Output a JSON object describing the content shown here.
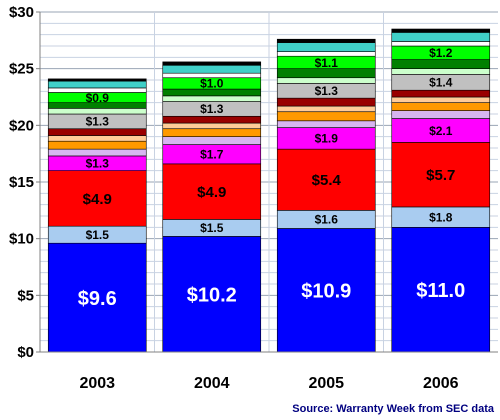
{
  "chart_data": {
    "type": "bar",
    "stacked": true,
    "categories": [
      "2003",
      "2004",
      "2005",
      "2006"
    ],
    "ylim": [
      0,
      30
    ],
    "y_ticks": [
      "$0",
      "$5",
      "$10",
      "$15",
      "$20",
      "$25",
      "$30"
    ],
    "y_tick_values": [
      0,
      5,
      10,
      15,
      20,
      25,
      30
    ],
    "grid": true,
    "title": "",
    "xlabel": "",
    "ylabel": "",
    "source": "Source: Warranty Week from SEC data",
    "series": [
      {
        "color": "#0000ff",
        "values": [
          9.6,
          10.2,
          10.9,
          11.0
        ],
        "labels": [
          "$9.6",
          "$10.2",
          "$10.9",
          "$11.0"
        ],
        "label_color": "#ffffff"
      },
      {
        "color": "#a9ccf0",
        "values": [
          1.5,
          1.5,
          1.6,
          1.8
        ],
        "labels": [
          "$1.5",
          "$1.5",
          "$1.6",
          "$1.8"
        ],
        "label_color": "#000000"
      },
      {
        "color": "#ff0000",
        "values": [
          4.9,
          4.9,
          5.4,
          5.7
        ],
        "labels": [
          "$4.9",
          "$4.9",
          "$5.4",
          "$5.7"
        ],
        "label_color": "#000000"
      },
      {
        "color": "#ff00ff",
        "values": [
          1.3,
          1.7,
          1.9,
          2.1
        ],
        "labels": [
          "$1.3",
          "$1.7",
          "$1.9",
          "$2.1"
        ],
        "label_color": "#000000"
      },
      {
        "color": "#d7b5f0",
        "values": [
          0.6,
          0.7,
          0.6,
          0.7
        ],
        "labels": [
          "",
          "",
          "",
          ""
        ],
        "label_color": "#000000"
      },
      {
        "color": "#ff9900",
        "values": [
          0.7,
          0.7,
          0.8,
          0.7
        ],
        "labels": [
          "",
          "",
          "",
          ""
        ],
        "label_color": "#000000"
      },
      {
        "color": "#ffcc99",
        "values": [
          0.5,
          0.5,
          0.5,
          0.5
        ],
        "labels": [
          "",
          "",
          "",
          ""
        ],
        "label_color": "#000000"
      },
      {
        "color": "#990000",
        "values": [
          0.6,
          0.6,
          0.7,
          0.6
        ],
        "labels": [
          "",
          "",
          "",
          ""
        ],
        "label_color": "#000000"
      },
      {
        "color": "#c0c0c0",
        "values": [
          1.3,
          1.3,
          1.3,
          1.4
        ],
        "labels": [
          "$1.3",
          "$1.3",
          "$1.3",
          "$1.4"
        ],
        "label_color": "#000000"
      },
      {
        "color": "#ccffcc",
        "values": [
          0.5,
          0.5,
          0.5,
          0.5
        ],
        "labels": [
          "",
          "",
          "",
          ""
        ],
        "label_color": "#000000"
      },
      {
        "color": "#008000",
        "values": [
          0.5,
          0.6,
          0.8,
          0.8
        ],
        "labels": [
          "",
          "",
          "",
          ""
        ],
        "label_color": "#000000"
      },
      {
        "color": "#00ff00",
        "values": [
          0.9,
          1.0,
          1.1,
          1.2
        ],
        "labels": [
          "$0.9",
          "$1.0",
          "$1.1",
          "$1.2"
        ],
        "label_color": "#000000"
      },
      {
        "color": "#ffffff",
        "values": [
          0.4,
          0.4,
          0.4,
          0.4
        ],
        "labels": [
          "",
          "",
          "",
          ""
        ],
        "label_color": "#000000"
      },
      {
        "color": "#40d0c8",
        "values": [
          0.6,
          0.7,
          0.8,
          0.8
        ],
        "labels": [
          "",
          "",
          "",
          ""
        ],
        "label_color": "#000000"
      },
      {
        "color": "#000000",
        "values": [
          0.2,
          0.3,
          0.3,
          0.3
        ],
        "labels": [
          "",
          "",
          "",
          ""
        ],
        "label_color": "#000000"
      }
    ]
  }
}
